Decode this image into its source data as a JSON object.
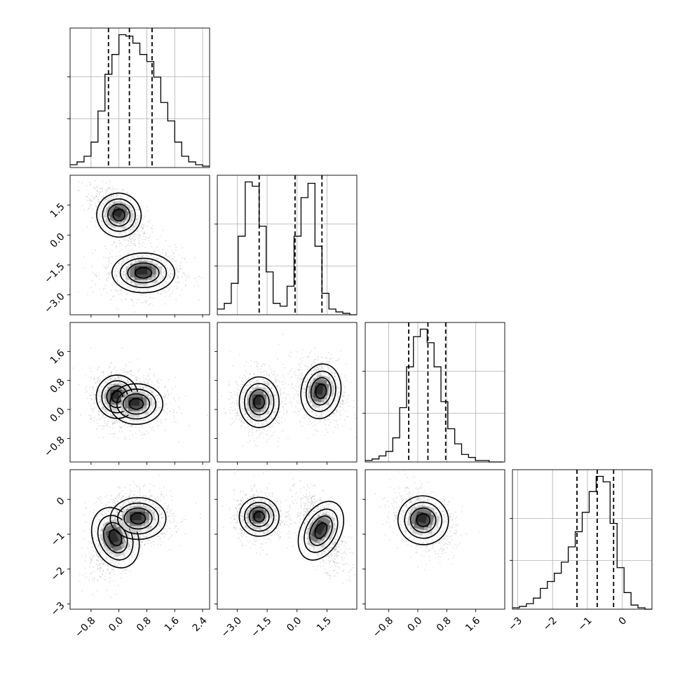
{
  "chart_data": {
    "type": "corner",
    "title": "",
    "n_params": 4,
    "parameters": [
      {
        "label": "",
        "range": [
          -1.4,
          2.6
        ],
        "ticks": [
          -0.8,
          0.0,
          0.8,
          1.6,
          2.4
        ],
        "tick_labels": [
          "−0.8",
          "0.0",
          "0.8",
          "1.6",
          "2.4"
        ],
        "quantiles": [
          -0.3,
          0.3,
          0.95
        ]
      },
      {
        "label": "",
        "range": [
          -4.0,
          3.0
        ],
        "ticks": [
          -3.0,
          -1.5,
          0.0,
          1.5
        ],
        "tick_labels": [
          "−3.0",
          "−1.5",
          "0.0",
          "1.5"
        ],
        "quantiles": [
          -1.9,
          -0.1,
          1.25
        ]
      },
      {
        "label": "",
        "range": [
          -1.45,
          2.4
        ],
        "ticks": [
          -0.8,
          0.0,
          0.8,
          1.6
        ],
        "tick_labels": [
          "−0.8",
          "0.0",
          "0.8",
          "1.6"
        ],
        "quantiles": [
          -0.25,
          0.28,
          0.77
        ]
      },
      {
        "label": "",
        "range": [
          -3.15,
          0.85
        ],
        "ticks": [
          -3,
          -2,
          -1,
          0
        ],
        "tick_labels": [
          "−3",
          "−2",
          "−1",
          "0"
        ],
        "quantiles": [
          -1.3,
          -0.72,
          -0.25
        ]
      }
    ],
    "histograms": [
      {
        "param": 0,
        "edges_start": -1.4,
        "bin_width": 0.2,
        "counts": [
          2,
          4,
          8,
          18,
          40,
          66,
          80,
          94,
          93,
          88,
          80,
          75,
          64,
          46,
          33,
          18,
          8,
          4,
          2,
          1
        ]
      },
      {
        "param": 1,
        "edges_start": -4.0,
        "bin_width": 0.35,
        "counts": [
          4,
          8,
          22,
          55,
          93,
          90,
          62,
          30,
          8,
          6,
          20,
          55,
          82,
          92,
          48,
          15,
          4,
          2,
          1,
          0
        ]
      },
      {
        "param": 2,
        "edges_start": -1.45,
        "bin_width": 0.19,
        "counts": [
          1,
          2,
          4,
          7,
          16,
          36,
          63,
          83,
          88,
          79,
          63,
          40,
          22,
          12,
          5,
          3,
          1,
          1,
          0,
          0
        ]
      },
      {
        "param": 3,
        "edges_start": -3.15,
        "bin_width": 0.2,
        "counts": [
          1,
          2,
          4,
          8,
          15,
          20,
          26,
          34,
          45,
          56,
          70,
          85,
          96,
          92,
          62,
          30,
          12,
          3,
          1,
          0
        ]
      }
    ],
    "pair_densities": [
      {
        "x": 0,
        "y": 1,
        "modes": [
          {
            "cx": 0.0,
            "cy": 1.0,
            "sx": 0.32,
            "sy": 0.55,
            "rho": -0.55,
            "w": 1.0
          },
          {
            "cx": 0.7,
            "cy": -1.9,
            "sx": 0.45,
            "sy": 0.5,
            "rho": 0.0,
            "w": 1.0
          }
        ]
      },
      {
        "x": 0,
        "y": 2,
        "modes": [
          {
            "cx": -0.05,
            "cy": 0.35,
            "sx": 0.3,
            "sy": 0.3,
            "rho": 0.0,
            "w": 1.0
          },
          {
            "cx": 0.5,
            "cy": 0.15,
            "sx": 0.38,
            "sy": 0.28,
            "rho": 0.0,
            "w": 1.0
          }
        ]
      },
      {
        "x": 0,
        "y": 3,
        "modes": [
          {
            "cx": -0.1,
            "cy": -1.1,
            "sx": 0.32,
            "sy": 0.45,
            "rho": 0.5,
            "w": 1.0
          },
          {
            "cx": 0.55,
            "cy": -0.55,
            "sx": 0.4,
            "sy": 0.3,
            "rho": 0.0,
            "w": 1.1
          }
        ]
      },
      {
        "x": 1,
        "y": 2,
        "modes": [
          {
            "cx": -1.9,
            "cy": 0.2,
            "sx": 0.5,
            "sy": 0.35,
            "rho": 0.0,
            "w": 1.0
          },
          {
            "cx": 1.2,
            "cy": 0.5,
            "sx": 0.5,
            "sy": 0.38,
            "rho": -0.2,
            "w": 1.0
          }
        ]
      },
      {
        "x": 1,
        "y": 3,
        "modes": [
          {
            "cx": -1.9,
            "cy": -0.5,
            "sx": 0.5,
            "sy": 0.28,
            "rho": 0.0,
            "w": 1.0
          },
          {
            "cx": 1.2,
            "cy": -0.9,
            "sx": 0.5,
            "sy": 0.45,
            "rho": -0.6,
            "w": 1.0
          }
        ]
      },
      {
        "x": 2,
        "y": 3,
        "modes": [
          {
            "cx": 0.15,
            "cy": -0.6,
            "sx": 0.35,
            "sy": 0.35,
            "rho": -0.3,
            "w": 1.0
          }
        ]
      }
    ],
    "scatter_color": "#7f7f7f",
    "density_colors": [
      "#f2f2f2",
      "#cfcfcf",
      "#a8a8a8",
      "#7a7a7a",
      "#4d4d4d",
      "#2b2b2b"
    ],
    "contour_color": "#000000",
    "quantile_line_style": "dashed",
    "grid": true
  }
}
